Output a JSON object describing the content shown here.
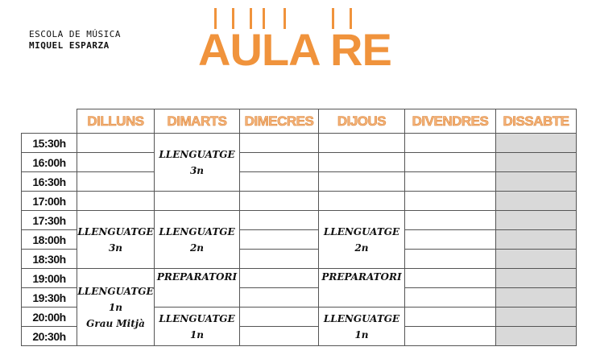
{
  "logo": {
    "line1": "ESCOLA DE MÚSICA",
    "line2": "MIQUEL ESPARZA"
  },
  "title": "AULA RE",
  "accent_color": "#f0933c",
  "days": [
    "DILLUNS",
    "DIMARTS",
    "DIMECRES",
    "DIJOUS",
    "DIVENDRES",
    "DISSABTE"
  ],
  "times": [
    "15:30h",
    "16:00h",
    "16:30h",
    "17:00h",
    "17:30h",
    "18:00h",
    "18:30h",
    "19:00h",
    "19:30h",
    "20:00h",
    "20:30h"
  ],
  "classes": {
    "mon_1": {
      "name": "LLENGUATGE",
      "level": "3n"
    },
    "mon_2": {
      "name": "LLENGUATGE",
      "level": "1n",
      "extra": "Grau Mitjà"
    },
    "tue_1": {
      "name": "LLENGUATGE",
      "level": "3n"
    },
    "tue_2": {
      "name": "LLENGUATGE",
      "level": "2n"
    },
    "tue_3": {
      "name": "PREPARATORI"
    },
    "tue_4": {
      "name": "LLENGUATGE",
      "level": "1n"
    },
    "thu_1": {
      "name": "LLENGUATGE",
      "level": "2n"
    },
    "thu_2": {
      "name": "PREPARATORI"
    },
    "thu_3": {
      "name": "LLENGUATGE",
      "level": "1n"
    }
  }
}
